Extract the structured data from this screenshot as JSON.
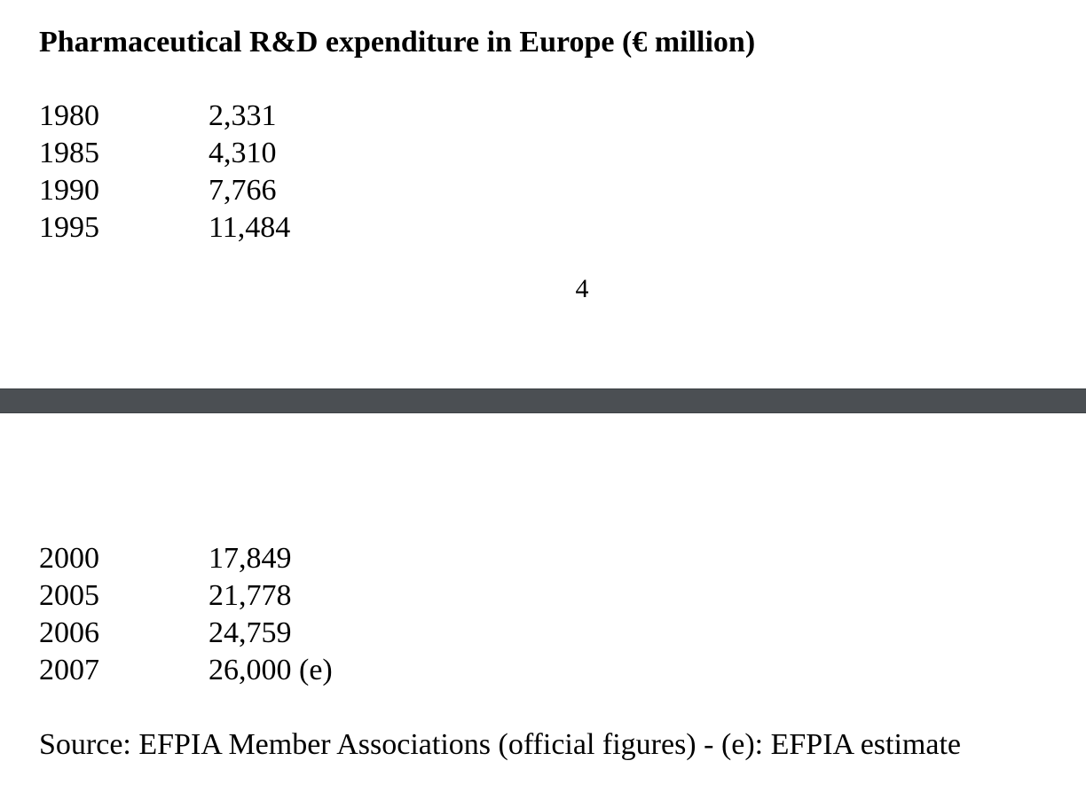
{
  "title": "Pharmaceutical R&D expenditure in Europe (€ million)",
  "page_number": "4",
  "rows_top": [
    {
      "year": "1980",
      "value": "2,331"
    },
    {
      "year": "1985",
      "value": "4,310"
    },
    {
      "year": "1990",
      "value": "7,766"
    },
    {
      "year": "1995",
      "value": "11,484"
    }
  ],
  "rows_bottom": [
    {
      "year": "2000",
      "value": "17,849"
    },
    {
      "year": "2005",
      "value": "21,778"
    },
    {
      "year": "2006",
      "value": "24,759"
    },
    {
      "year": "2007",
      "value": "26,000 (e)"
    }
  ],
  "source": "Source: EFPIA Member Associations (official figures) - (e): EFPIA estimate",
  "colors": {
    "separator": "#4b4f53",
    "text": "#000000",
    "background": "#ffffff"
  }
}
